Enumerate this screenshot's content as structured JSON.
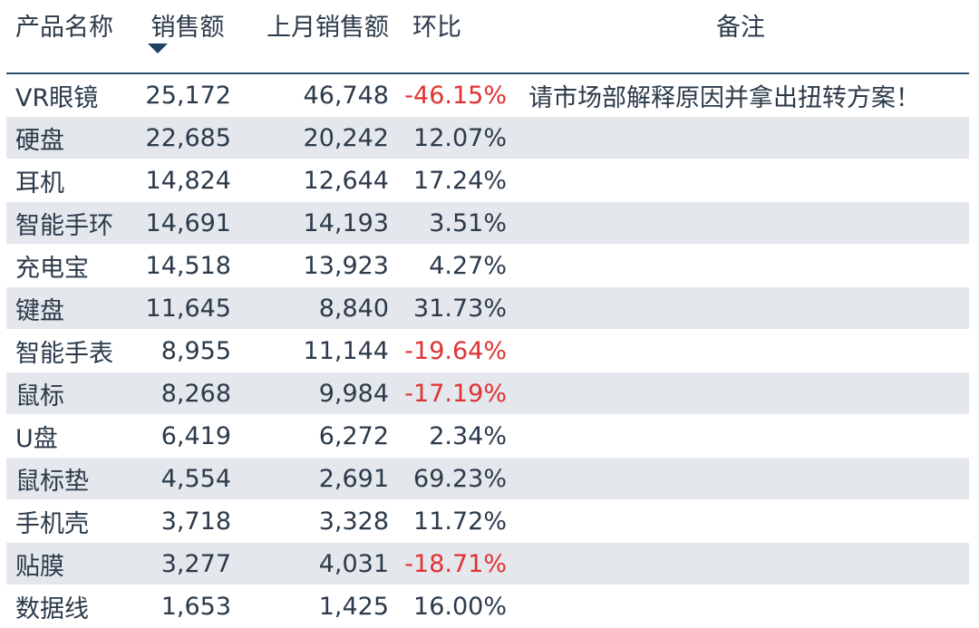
{
  "headers": {
    "name": "产品名称",
    "sales": "销售额",
    "last": "上月销售额",
    "mom": "环比",
    "note": "备注"
  },
  "sort": {
    "column": "sales",
    "direction": "descending",
    "icon": "sort-descending-icon"
  },
  "colors": {
    "negative": "#e03232",
    "header_rule": "#2d4f73",
    "band": "#e4e7ec",
    "text": "#2b3a4a"
  },
  "rows": [
    {
      "name": "VR眼镜",
      "sales": "25,172",
      "last": "46,748",
      "mom": "-46.15%",
      "negative": true,
      "note": "请市场部解释原因并拿出扭转方案！"
    },
    {
      "name": "硬盘",
      "sales": "22,685",
      "last": "20,242",
      "mom": "12.07%",
      "negative": false,
      "note": ""
    },
    {
      "name": "耳机",
      "sales": "14,824",
      "last": "12,644",
      "mom": "17.24%",
      "negative": false,
      "note": ""
    },
    {
      "name": "智能手环",
      "sales": "14,691",
      "last": "14,193",
      "mom": "3.51%",
      "negative": false,
      "note": ""
    },
    {
      "name": "充电宝",
      "sales": "14,518",
      "last": "13,923",
      "mom": "4.27%",
      "negative": false,
      "note": ""
    },
    {
      "name": "键盘",
      "sales": "11,645",
      "last": "8,840",
      "mom": "31.73%",
      "negative": false,
      "note": ""
    },
    {
      "name": "智能手表",
      "sales": "8,955",
      "last": "11,144",
      "mom": "-19.64%",
      "negative": true,
      "note": ""
    },
    {
      "name": "鼠标",
      "sales": "8,268",
      "last": "9,984",
      "mom": "-17.19%",
      "negative": true,
      "note": ""
    },
    {
      "name": "U盘",
      "sales": "6,419",
      "last": "6,272",
      "mom": "2.34%",
      "negative": false,
      "note": ""
    },
    {
      "name": "鼠标垫",
      "sales": "4,554",
      "last": "2,691",
      "mom": "69.23%",
      "negative": false,
      "note": ""
    },
    {
      "name": "手机壳",
      "sales": "3,718",
      "last": "3,328",
      "mom": "11.72%",
      "negative": false,
      "note": ""
    },
    {
      "name": "贴膜",
      "sales": "3,277",
      "last": "4,031",
      "mom": "-18.71%",
      "negative": true,
      "note": ""
    },
    {
      "name": "数据线",
      "sales": "1,653",
      "last": "1,425",
      "mom": "16.00%",
      "negative": false,
      "note": ""
    }
  ]
}
